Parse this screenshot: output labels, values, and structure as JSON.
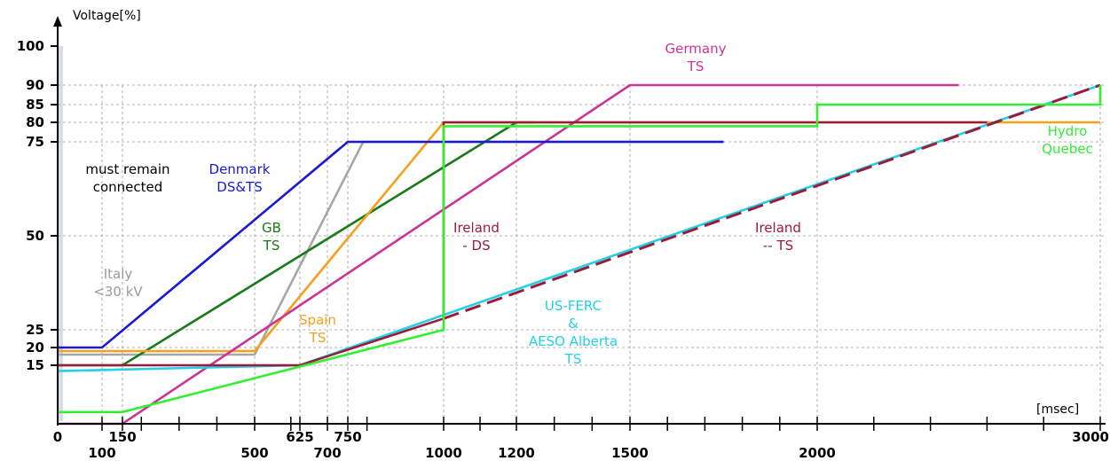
{
  "chart_data": {
    "type": "line",
    "title": "",
    "ylabel": "Voltage[%]",
    "xlabel": "[msec]",
    "y_ticks": [
      100,
      90,
      85,
      80,
      75,
      50,
      25,
      20,
      15
    ],
    "x_ticks_upper": [
      {
        "value": 0,
        "label": "0"
      },
      {
        "value": 150,
        "label": "150"
      },
      {
        "value": 625,
        "label": "625"
      },
      {
        "value": 750,
        "label": "750"
      },
      {
        "value": 3000,
        "label": "3000"
      }
    ],
    "x_ticks_lower": [
      {
        "value": 100,
        "label": "100"
      },
      {
        "value": 500,
        "label": "500"
      },
      {
        "value": 700,
        "label": "700"
      },
      {
        "value": 1000,
        "label": "1000"
      },
      {
        "value": 1200,
        "label": "1200"
      },
      {
        "value": 1500,
        "label": "1500"
      },
      {
        "value": 2000,
        "label": "2000"
      }
    ],
    "annotations": [
      {
        "id": "must-remain",
        "lines": [
          "must remain",
          "connected"
        ],
        "color": "#000000"
      },
      {
        "id": "denmark",
        "lines": [
          "Denmark",
          "DS&TS"
        ],
        "color": "#1a1ad6"
      },
      {
        "id": "gb",
        "lines": [
          "GB",
          "TS"
        ],
        "color": "#1a7a1a"
      },
      {
        "id": "italy",
        "lines": [
          "Italy",
          "<30 kV"
        ],
        "color": "#9a9a9a"
      },
      {
        "id": "spain",
        "lines": [
          "Spain",
          "TS"
        ],
        "color": "#f5a01a"
      },
      {
        "id": "germany",
        "lines": [
          "Germany",
          "TS"
        ],
        "color": "#cc3399"
      },
      {
        "id": "ireland-ds",
        "lines": [
          "Ireland",
          "- DS"
        ],
        "color": "#9b1b3a"
      },
      {
        "id": "ireland-ts",
        "lines": [
          "Ireland",
          "-- TS"
        ],
        "color": "#9b1b3a"
      },
      {
        "id": "us-ferc",
        "lines": [
          "US-FERC",
          "&",
          "AESO Alberta",
          "TS"
        ],
        "color": "#22d0e8"
      },
      {
        "id": "hydro",
        "lines": [
          "Hydro",
          "Quebec"
        ],
        "color": "#33ee33"
      }
    ],
    "series": [
      {
        "key": "italy",
        "color": "#a6a6a6",
        "dash": false,
        "points": [
          [
            0,
            18
          ],
          [
            500,
            18
          ],
          [
            790,
            75
          ],
          [
            1750,
            75
          ]
        ]
      },
      {
        "key": "gb",
        "color": "#1a7a1a",
        "dash": false,
        "points": [
          [
            0,
            15
          ],
          [
            150,
            15
          ],
          [
            1200,
            80
          ],
          [
            1250,
            80
          ]
        ]
      },
      {
        "key": "spain",
        "color": "#f5a01a",
        "dash": false,
        "points": [
          [
            0,
            19
          ],
          [
            500,
            19
          ],
          [
            1000,
            80
          ],
          [
            3000,
            80
          ]
        ]
      },
      {
        "key": "germany",
        "color": "#cc3399",
        "dash": false,
        "points": [
          [
            0,
            5
          ],
          [
            150,
            5
          ],
          [
            1500,
            90
          ],
          [
            2500,
            90
          ]
        ]
      },
      {
        "key": "denmark",
        "color": "#1a1ad6",
        "dash": false,
        "points": [
          [
            0,
            20
          ],
          [
            100,
            20
          ],
          [
            750,
            75
          ],
          [
            1750,
            75
          ]
        ]
      },
      {
        "key": "us-ferc",
        "color": "#22d0e8",
        "dash": false,
        "points": [
          [
            0,
            14
          ],
          [
            625,
            15
          ],
          [
            3000,
            90
          ]
        ]
      },
      {
        "key": "ireland-ds",
        "color": "#9b1b3a",
        "dash": false,
        "points": [
          [
            0,
            15
          ],
          [
            625,
            15
          ],
          [
            1000,
            28
          ],
          [
            1000,
            80
          ],
          [
            2600,
            80
          ]
        ]
      },
      {
        "key": "ireland-ts",
        "color": "#9b1b3a",
        "dash": true,
        "points": [
          [
            1000,
            28
          ],
          [
            3000,
            90
          ]
        ]
      },
      {
        "key": "hydro",
        "color": "#33ee33",
        "dash": false,
        "points": [
          [
            0,
            7
          ],
          [
            150,
            7
          ],
          [
            1000,
            25
          ],
          [
            1000,
            79
          ],
          [
            2000,
            79
          ],
          [
            2000,
            85
          ],
          [
            3000,
            85
          ],
          [
            3000,
            90
          ]
        ]
      }
    ]
  }
}
